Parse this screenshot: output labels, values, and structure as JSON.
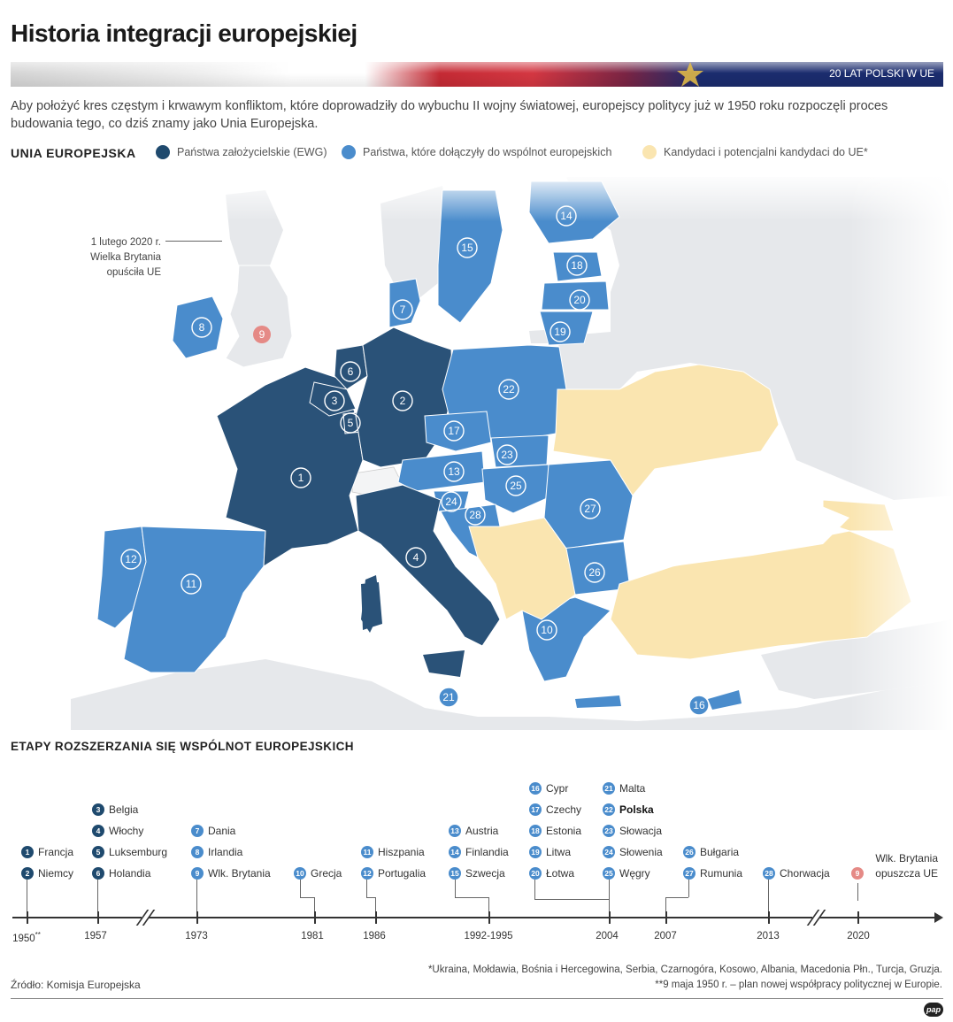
{
  "title": "Historia integracji europejskiej",
  "banner_label": "20 LAT POLSKI W UE",
  "intro": "Aby położyć kres częstym i krwawym konfliktom, które doprowadziły do wybuchu II wojny światowej, europejscy politycy już w 1950 roku rozpoczęli proces budowania tego, co dziś znamy jako Unia Europejska.",
  "legend": {
    "title": "UNIA EUROPEJSKA",
    "items": [
      {
        "label": "Państwa założycielskie (EWG)",
        "color": "#1f4a6e"
      },
      {
        "label": "Państwa, które dołączyły do wspólnot europejskich",
        "color": "#4a8ccc"
      },
      {
        "label": "Kandydaci i potencjalni kandydaci do UE*",
        "color": "#fae5b0"
      }
    ]
  },
  "uk_note": {
    "line1": "1 lutego 2020 r.",
    "line2": "Wielka Brytania",
    "line3": "opuściła UE"
  },
  "map_colors": {
    "sea": "#ffffff",
    "land_other": "#e6e8eb",
    "founder": "#2a5278",
    "joined": "#4a8ccc",
    "candidate": "#fae5b0",
    "uk": "#e6e8eb"
  },
  "map_numbers": [
    "1",
    "2",
    "3",
    "4",
    "5",
    "6",
    "7",
    "8",
    "9",
    "10",
    "11",
    "12",
    "13",
    "14",
    "15",
    "16",
    "17",
    "18",
    "19",
    "20",
    "21",
    "22",
    "23",
    "24",
    "25",
    "26",
    "27",
    "28"
  ],
  "timeline": {
    "title": "ETAPY ROZSZERZANIA SIĘ WSPÓLNOT EUROPEJSKICH",
    "years": [
      "1950",
      "1957",
      "1973",
      "1981",
      "1986",
      "1992-1995",
      "2004",
      "2007",
      "2013",
      "2020"
    ],
    "year_1950_mark": "**",
    "entries": {
      "e1": {
        "num": "1",
        "name": "Francja"
      },
      "e2": {
        "num": "2",
        "name": "Niemcy"
      },
      "e3": {
        "num": "3",
        "name": "Belgia"
      },
      "e4": {
        "num": "4",
        "name": "Włochy"
      },
      "e5": {
        "num": "5",
        "name": "Luksemburg"
      },
      "e6": {
        "num": "6",
        "name": "Holandia"
      },
      "e7": {
        "num": "7",
        "name": "Dania"
      },
      "e8": {
        "num": "8",
        "name": "Irlandia"
      },
      "e9": {
        "num": "9",
        "name": "Wlk. Brytania"
      },
      "e10": {
        "num": "10",
        "name": "Grecja"
      },
      "e11": {
        "num": "11",
        "name": "Hiszpania"
      },
      "e12": {
        "num": "12",
        "name": "Portugalia"
      },
      "e13": {
        "num": "13",
        "name": "Austria"
      },
      "e14": {
        "num": "14",
        "name": "Finlandia"
      },
      "e15": {
        "num": "15",
        "name": "Szwecja"
      },
      "e16": {
        "num": "16",
        "name": "Cypr"
      },
      "e17": {
        "num": "17",
        "name": "Czechy"
      },
      "e18": {
        "num": "18",
        "name": "Estonia"
      },
      "e19": {
        "num": "19",
        "name": "Litwa"
      },
      "e20": {
        "num": "20",
        "name": "Łotwa"
      },
      "e21": {
        "num": "21",
        "name": "Malta"
      },
      "e22": {
        "num": "22",
        "name": "Polska"
      },
      "e23": {
        "num": "23",
        "name": "Słowacja"
      },
      "e24": {
        "num": "24",
        "name": "Słowenia"
      },
      "e25": {
        "num": "25",
        "name": "Węgry"
      },
      "e26": {
        "num": "26",
        "name": "Bułgaria"
      },
      "e27": {
        "num": "27",
        "name": "Rumunia"
      },
      "e28": {
        "num": "28",
        "name": "Chorwacja"
      }
    },
    "brexit": {
      "num": "9",
      "line1": "Wlk. Brytania",
      "line2": "opuszcza UE"
    }
  },
  "footnotes": {
    "f1": "*Ukraina, Mołdawia, Bośnia i Hercegowina, Serbia, Czarnogóra, Kosowo, Albania, Macedonia Płn., Turcja, Gruzja.",
    "f2": "**9 maja 1950 r. – plan nowej współpracy politycznej w Europie."
  },
  "source": "Źródło: Komisja Europejska",
  "logo_text": "pap"
}
